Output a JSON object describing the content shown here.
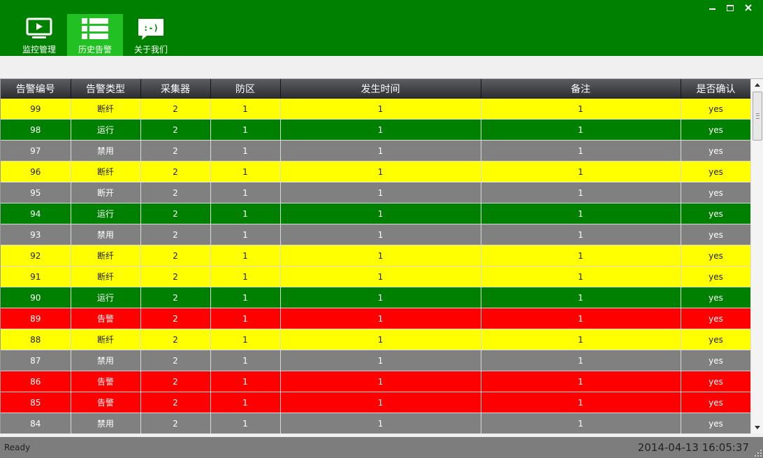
{
  "nav": {
    "items": [
      {
        "label": "监控管理",
        "icon": "monitor-icon"
      },
      {
        "label": "历史告警",
        "icon": "list-icon",
        "active": true
      },
      {
        "label": "关于我们",
        "icon": "speech-bubble-icon",
        "glyph": ":-)"
      }
    ]
  },
  "colors": {
    "topbar": "#008000",
    "active_nav": "#22c022",
    "yellow": "#ffff00",
    "green": "#008000",
    "gray": "#808080",
    "red": "#ff0000"
  },
  "table": {
    "columns": [
      "告警编号",
      "告警类型",
      "采集器",
      "防区",
      "发生时间",
      "备注",
      "是否确认"
    ],
    "rows": [
      {
        "id": "99",
        "type": "断纤",
        "collector": "2",
        "zone": "1",
        "time": "1",
        "note": "1",
        "confirmed": "yes",
        "color": "yellow"
      },
      {
        "id": "98",
        "type": "运行",
        "collector": "2",
        "zone": "1",
        "time": "1",
        "note": "1",
        "confirmed": "yes",
        "color": "green"
      },
      {
        "id": "97",
        "type": "禁用",
        "collector": "2",
        "zone": "1",
        "time": "1",
        "note": "1",
        "confirmed": "yes",
        "color": "gray"
      },
      {
        "id": "96",
        "type": "断纤",
        "collector": "2",
        "zone": "1",
        "time": "1",
        "note": "1",
        "confirmed": "yes",
        "color": "yellow"
      },
      {
        "id": "95",
        "type": "断开",
        "collector": "2",
        "zone": "1",
        "time": "1",
        "note": "1",
        "confirmed": "yes",
        "color": "gray"
      },
      {
        "id": "94",
        "type": "运行",
        "collector": "2",
        "zone": "1",
        "time": "1",
        "note": "1",
        "confirmed": "yes",
        "color": "green"
      },
      {
        "id": "93",
        "type": "禁用",
        "collector": "2",
        "zone": "1",
        "time": "1",
        "note": "1",
        "confirmed": "yes",
        "color": "gray"
      },
      {
        "id": "92",
        "type": "断纤",
        "collector": "2",
        "zone": "1",
        "time": "1",
        "note": "1",
        "confirmed": "yes",
        "color": "yellow"
      },
      {
        "id": "91",
        "type": "断纤",
        "collector": "2",
        "zone": "1",
        "time": "1",
        "note": "1",
        "confirmed": "yes",
        "color": "yellow"
      },
      {
        "id": "90",
        "type": "运行",
        "collector": "2",
        "zone": "1",
        "time": "1",
        "note": "1",
        "confirmed": "yes",
        "color": "green"
      },
      {
        "id": "89",
        "type": "告警",
        "collector": "2",
        "zone": "1",
        "time": "1",
        "note": "1",
        "confirmed": "yes",
        "color": "red"
      },
      {
        "id": "88",
        "type": "断纤",
        "collector": "2",
        "zone": "1",
        "time": "1",
        "note": "1",
        "confirmed": "yes",
        "color": "yellow"
      },
      {
        "id": "87",
        "type": "禁用",
        "collector": "2",
        "zone": "1",
        "time": "1",
        "note": "1",
        "confirmed": "yes",
        "color": "gray"
      },
      {
        "id": "86",
        "type": "告警",
        "collector": "2",
        "zone": "1",
        "time": "1",
        "note": "1",
        "confirmed": "yes",
        "color": "red"
      },
      {
        "id": "85",
        "type": "告警",
        "collector": "2",
        "zone": "1",
        "time": "1",
        "note": "1",
        "confirmed": "yes",
        "color": "red"
      },
      {
        "id": "84",
        "type": "禁用",
        "collector": "2",
        "zone": "1",
        "time": "1",
        "note": "1",
        "confirmed": "yes",
        "color": "gray"
      }
    ]
  },
  "status": {
    "text": "Ready",
    "datetime": "2014-04-13 16:05:37"
  }
}
